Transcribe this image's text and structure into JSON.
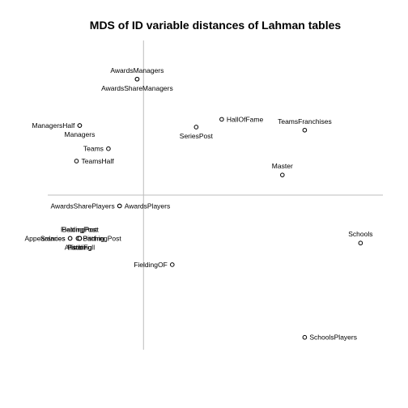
{
  "chart_data": {
    "type": "scatter",
    "title": "MDS of ID variable distances of Lahman tables",
    "xlabel": "",
    "ylabel": "",
    "xlim": [
      -6.0,
      15.0
    ],
    "ylim": [
      -10.0,
      10.0
    ],
    "grid": false,
    "reference_lines": {
      "x": 0,
      "y": 0
    },
    "points": [
      {
        "label": "AwardsManagers",
        "x": -0.4,
        "y": 7.5,
        "label_side": "above"
      },
      {
        "label": "AwardsShareManagers",
        "x": -0.4,
        "y": 7.5,
        "label_side": "below"
      },
      {
        "label": "ManagersHalf",
        "x": -4.0,
        "y": 4.5,
        "label_side": "left"
      },
      {
        "label": "Managers",
        "x": -4.0,
        "y": 4.5,
        "label_side": "below"
      },
      {
        "label": "Teams",
        "x": -2.2,
        "y": 3.0,
        "label_side": "left"
      },
      {
        "label": "TeamsHalf",
        "x": -4.2,
        "y": 2.2,
        "label_side": "right"
      },
      {
        "label": "HallOfFame",
        "x": 4.9,
        "y": 4.9,
        "label_side": "right"
      },
      {
        "label": "SeriesPost",
        "x": 3.3,
        "y": 4.4,
        "label_side": "below"
      },
      {
        "label": "TeamsFranchises",
        "x": 10.1,
        "y": 4.2,
        "label_side": "above"
      },
      {
        "label": "Master",
        "x": 8.7,
        "y": 1.3,
        "label_side": "above"
      },
      {
        "label": "AwardsSharePlayers",
        "x": -1.5,
        "y": -0.7,
        "label_side": "left"
      },
      {
        "label": "AwardsPlayers",
        "x": -1.5,
        "y": -0.7,
        "label_side": "right"
      },
      {
        "label": "FieldingPost",
        "x": -4.0,
        "y": -2.8,
        "label_side": "above"
      },
      {
        "label": "BattingPost",
        "x": -4.0,
        "y": -2.8,
        "label_side": "above"
      },
      {
        "label": "Appearances",
        "x": -4.6,
        "y": -2.8,
        "label_side": "left"
      },
      {
        "label": "Salaries",
        "x": -4.6,
        "y": -2.8,
        "label_side": "left"
      },
      {
        "label": "Batting",
        "x": -4.1,
        "y": -2.8,
        "label_side": "right"
      },
      {
        "label": "PitchingPost",
        "x": -4.1,
        "y": -2.8,
        "label_side": "right"
      },
      {
        "label": "Pitching",
        "x": -4.0,
        "y": -2.8,
        "label_side": "below"
      },
      {
        "label": "Fielding",
        "x": -4.0,
        "y": -2.8,
        "label_side": "below"
      },
      {
        "label": "AllstarFull",
        "x": -4.0,
        "y": -2.8,
        "label_side": "below"
      },
      {
        "label": "FieldingOF",
        "x": 1.8,
        "y": -4.5,
        "label_side": "left"
      },
      {
        "label": "Schools",
        "x": 13.6,
        "y": -3.1,
        "label_side": "above"
      },
      {
        "label": "SchoolsPlayers",
        "x": 10.1,
        "y": -9.2,
        "label_side": "right"
      }
    ]
  }
}
